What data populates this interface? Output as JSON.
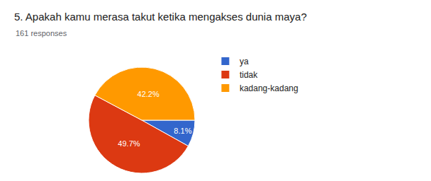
{
  "chart_data": {
    "type": "pie",
    "title": "5. Apakah kamu merasa takut ketika mengakses dunia maya?",
    "subtitle": "161 responses",
    "categories": [
      "ya",
      "tidak",
      "kadang-kadang"
    ],
    "values": [
      8.1,
      49.7,
      42.2
    ],
    "value_labels": [
      "8.1%",
      "49.7%",
      "42.2%"
    ],
    "colors": [
      "#3366cc",
      "#dc3912",
      "#ff9900"
    ],
    "data_labels": true,
    "legend": "right"
  }
}
